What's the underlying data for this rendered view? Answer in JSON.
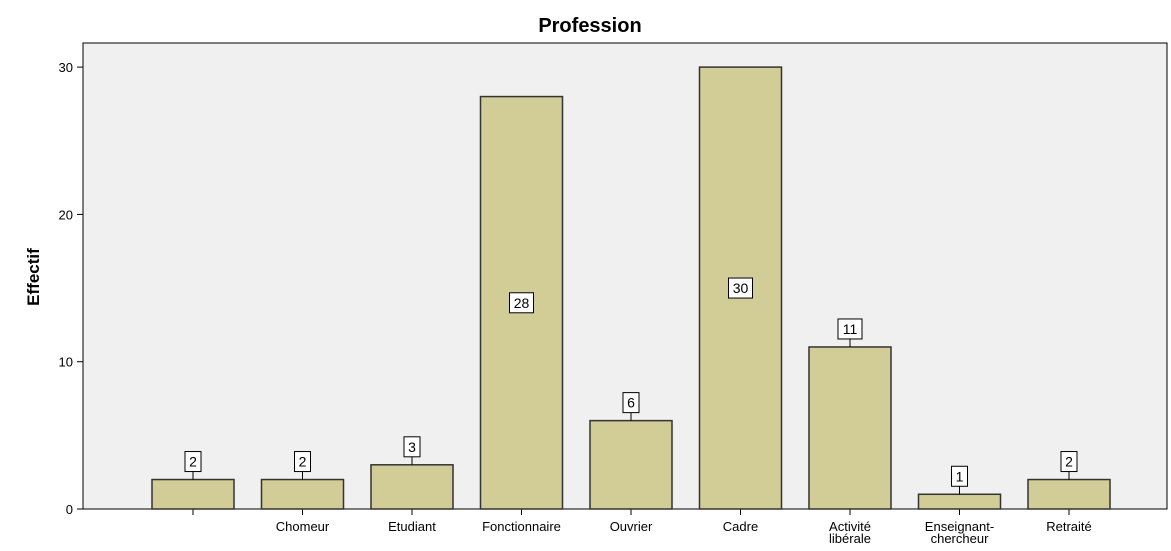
{
  "chart_data": {
    "type": "bar",
    "title": "Profession",
    "xlabel": "",
    "ylabel": "Effectif",
    "ylim": [
      0,
      32
    ],
    "yticks": [
      0,
      10,
      20,
      30
    ],
    "categories": [
      "",
      "Chomeur",
      "Etudiant",
      "Fonctionnaire",
      "Ouvrier",
      "Cadre",
      "Activité libérale",
      "Enseignant-chercheur",
      "Retraité"
    ],
    "category_lines": [
      [
        ""
      ],
      [
        "Chomeur"
      ],
      [
        "Etudiant"
      ],
      [
        "Fonctionnaire"
      ],
      [
        "Ouvrier"
      ],
      [
        "Cadre"
      ],
      [
        "Activité",
        "libérale"
      ],
      [
        "Enseignant-",
        "chercheur"
      ],
      [
        "Retraité"
      ]
    ],
    "values": [
      2,
      2,
      3,
      28,
      6,
      30,
      11,
      1,
      2
    ],
    "data_labels": [
      "2",
      "2",
      "3",
      "28",
      "6",
      "30",
      "11",
      "1",
      "2"
    ],
    "grid": false,
    "colors": {
      "bar_fill": "#D2CC96",
      "bar_stroke": "#333333",
      "plot_background": "#F0F0F0",
      "axis": "#000000"
    }
  }
}
